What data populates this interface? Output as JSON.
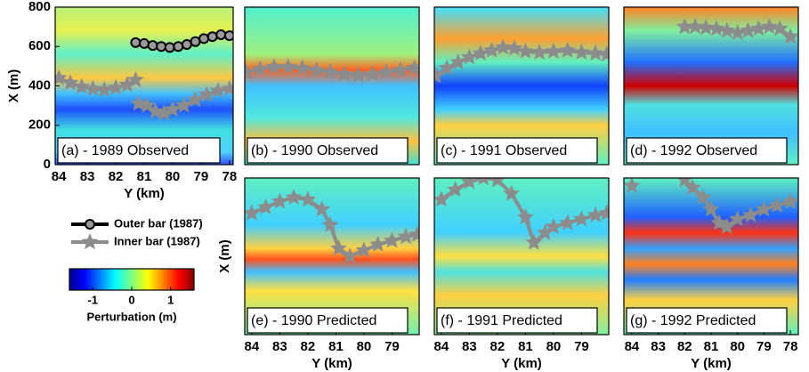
{
  "chart_data": [
    {
      "type": "line",
      "label": "(a) - 1989 Observed",
      "xlim": [
        84.13,
        77.87
      ],
      "ylim": [
        0,
        800
      ],
      "xticks": [
        84,
        83,
        82,
        81,
        80,
        79,
        78
      ],
      "yticks": [
        0,
        200,
        400,
        600,
        800
      ],
      "xlabel": "Y (km)",
      "ylabel": "X (m)",
      "series": [
        {
          "name": "Outer bar (1987)",
          "color": "#000000",
          "marker": "circle",
          "x": [
            81.3,
            81.0,
            80.7,
            80.4,
            80.1,
            79.8,
            79.5,
            79.2,
            78.9,
            78.6,
            78.3,
            78.0
          ],
          "values": [
            620,
            615,
            605,
            600,
            595,
            600,
            610,
            625,
            640,
            650,
            660,
            655
          ]
        },
        {
          "name": "Inner bar (1987)",
          "color": "#8c8c8c",
          "marker": "star",
          "x": [
            84.0,
            83.6,
            83.2,
            82.8,
            82.4,
            82.0,
            81.6,
            81.3,
            81.25,
            81.2,
            80.9,
            80.6,
            80.3,
            80.0,
            79.6,
            79.2,
            78.8,
            78.4,
            78.0
          ],
          "values": [
            440,
            415,
            395,
            385,
            380,
            390,
            405,
            430,
            null,
            310,
            300,
            270,
            260,
            280,
            300,
            330,
            355,
            375,
            385
          ]
        }
      ]
    },
    {
      "type": "line",
      "label": "(b) - 1990 Observed",
      "xlim": [
        84.25,
        78.03
      ],
      "ylim": [
        0,
        800
      ],
      "series": [
        {
          "color": "#8c8c8c",
          "marker": "star",
          "x": [
            84.2,
            83.7,
            83.2,
            82.7,
            82.2,
            81.7,
            81.2,
            80.7,
            80.2,
            79.7,
            79.2,
            78.7,
            78.2
          ],
          "values": [
            470,
            485,
            495,
            495,
            490,
            480,
            470,
            460,
            455,
            460,
            470,
            480,
            490
          ]
        }
      ]
    },
    {
      "type": "line",
      "label": "(c) - 1991 Observed",
      "xlim": [
        84.25,
        78.03
      ],
      "ylim": [
        0,
        800
      ],
      "series": [
        {
          "color": "#8c8c8c",
          "marker": "star",
          "x": [
            84.2,
            83.8,
            83.4,
            83.0,
            82.6,
            82.2,
            81.8,
            81.4,
            81.0,
            80.5,
            80.0,
            79.5,
            79.0,
            78.5,
            78.1
          ],
          "values": [
            450,
            490,
            520,
            545,
            565,
            580,
            595,
            590,
            575,
            570,
            575,
            580,
            570,
            565,
            560
          ]
        }
      ]
    },
    {
      "type": "line",
      "label": "(d) - 1992 Observed",
      "xlim": [
        84.3,
        77.7
      ],
      "ylim": [
        0,
        800
      ],
      "series": [
        {
          "color": "#8c8c8c",
          "marker": "star",
          "x": [
            82.0,
            81.6,
            81.2,
            80.8,
            80.4,
            80.0,
            79.6,
            79.2,
            78.8,
            78.4,
            78.0
          ],
          "values": [
            700,
            700,
            695,
            690,
            680,
            670,
            680,
            690,
            700,
            690,
            650
          ]
        }
      ]
    },
    {
      "type": "line",
      "label": "(e) - 1990 Predicted",
      "xlim": [
        84.25,
        78.03
      ],
      "ylim": [
        0,
        800
      ],
      "xticks": [
        84,
        83,
        82,
        81,
        80,
        79
      ],
      "xlabel": "Y (km)",
      "ylabel": "X (m)",
      "series": [
        {
          "color": "#8c8c8c",
          "marker": "star",
          "x": [
            84.0,
            83.5,
            83.0,
            82.5,
            82.0,
            81.5,
            81.2,
            80.9,
            80.5,
            80.0,
            79.5,
            79.0,
            78.5,
            78.1
          ],
          "values": [
            620,
            650,
            680,
            700,
            690,
            640,
            560,
            440,
            400,
            430,
            460,
            480,
            500,
            510
          ]
        }
      ]
    },
    {
      "type": "line",
      "label": "(f) - 1991 Predicted",
      "xlim": [
        84.25,
        78.03
      ],
      "ylim": [
        0,
        800
      ],
      "xticks": [
        84,
        83,
        82,
        81,
        80,
        79
      ],
      "xlabel": "Y (km)",
      "series": [
        {
          "color": "#8c8c8c",
          "marker": "star",
          "x": [
            84.0,
            83.5,
            83.0,
            82.5,
            82.0,
            81.5,
            81.0,
            80.7,
            80.3,
            80.0,
            79.5,
            79.0,
            78.5,
            78.1
          ],
          "values": [
            690,
            740,
            780,
            800,
            790,
            720,
            600,
            470,
            520,
            550,
            570,
            590,
            610,
            620
          ]
        }
      ]
    },
    {
      "type": "line",
      "label": "(g) - 1992 Predicted",
      "xlim": [
        84.3,
        77.7
      ],
      "ylim": [
        0,
        800
      ],
      "xticks": [
        84,
        83,
        82,
        81,
        80,
        79,
        78
      ],
      "xlabel": "Y (km)",
      "series": [
        {
          "color": "#8c8c8c",
          "marker": "star",
          "x": [
            84.0,
            83.5,
            82.0,
            81.7,
            81.3,
            81.0,
            80.7,
            80.4,
            80.0,
            79.5,
            79.0,
            78.5,
            78.0
          ],
          "values": [
            760,
            null,
            790,
            750,
            700,
            640,
            570,
            550,
            590,
            610,
            640,
            660,
            680
          ]
        }
      ]
    }
  ],
  "colorbar": {
    "label": "Perturbation (m)",
    "lim": [
      -1.6,
      1.6
    ],
    "ticks": [
      -1,
      0,
      1
    ]
  }
}
